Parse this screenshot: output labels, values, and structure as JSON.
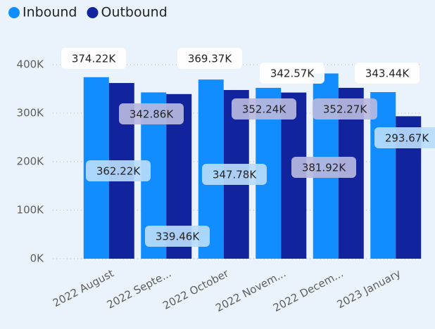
{
  "chart_data": {
    "type": "bar",
    "categories": [
      "2022 August",
      "2022 Septe...",
      "2022 October",
      "2022 Novem...",
      "2022 Decem...",
      "2023 January"
    ],
    "series": [
      {
        "name": "Inbound",
        "color": "#118dff",
        "values": [
          374220,
          342860,
          369370,
          352240,
          381920,
          343440
        ],
        "value_labels": [
          "374.22K",
          "342.86K",
          "369.37K",
          "352.24K",
          "381.92K",
          "343.44K"
        ]
      },
      {
        "name": "Outbound",
        "color": "#12239e",
        "values": [
          362220,
          339460,
          347780,
          342570,
          352270,
          293670
        ],
        "value_labels": [
          "362.22K",
          "339.46K",
          "347.78K",
          "342.57K",
          "352.27K",
          "293.67K"
        ]
      }
    ],
    "ylim": [
      0,
      400000
    ],
    "yticks": [
      {
        "value": 0,
        "label": "0K"
      },
      {
        "value": 100000,
        "label": "100K"
      },
      {
        "value": 200000,
        "label": "200K"
      },
      {
        "value": 300000,
        "label": "300K"
      },
      {
        "value": 400000,
        "label": "400K"
      }
    ],
    "grid": true,
    "legend": "top-left"
  }
}
